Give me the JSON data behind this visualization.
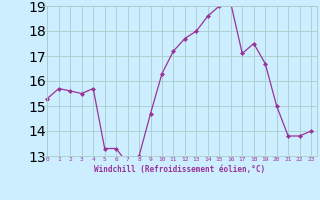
{
  "x": [
    0,
    1,
    2,
    3,
    4,
    5,
    6,
    7,
    8,
    9,
    10,
    11,
    12,
    13,
    14,
    15,
    16,
    17,
    18,
    19,
    20,
    21,
    22,
    23
  ],
  "y": [
    15.3,
    15.7,
    15.6,
    15.5,
    15.7,
    13.3,
    13.3,
    12.7,
    13.0,
    14.7,
    16.3,
    17.2,
    17.7,
    18.0,
    18.6,
    19.0,
    19.1,
    17.1,
    17.5,
    16.7,
    15.0,
    13.8,
    13.8,
    14.0
  ],
  "line_color": "#993399",
  "marker_color": "#993399",
  "bg_color": "#cceeff",
  "grid_color": "#aacccc",
  "tick_color": "#993399",
  "label_color": "#993399",
  "xlabel": "Windchill (Refroidissement éolien,°C)",
  "ylim": [
    13,
    19
  ],
  "yticks": [
    13,
    14,
    15,
    16,
    17,
    18,
    19
  ],
  "xticks": [
    0,
    1,
    2,
    3,
    4,
    5,
    6,
    7,
    8,
    9,
    10,
    11,
    12,
    13,
    14,
    15,
    16,
    17,
    18,
    19,
    20,
    21,
    22,
    23
  ]
}
